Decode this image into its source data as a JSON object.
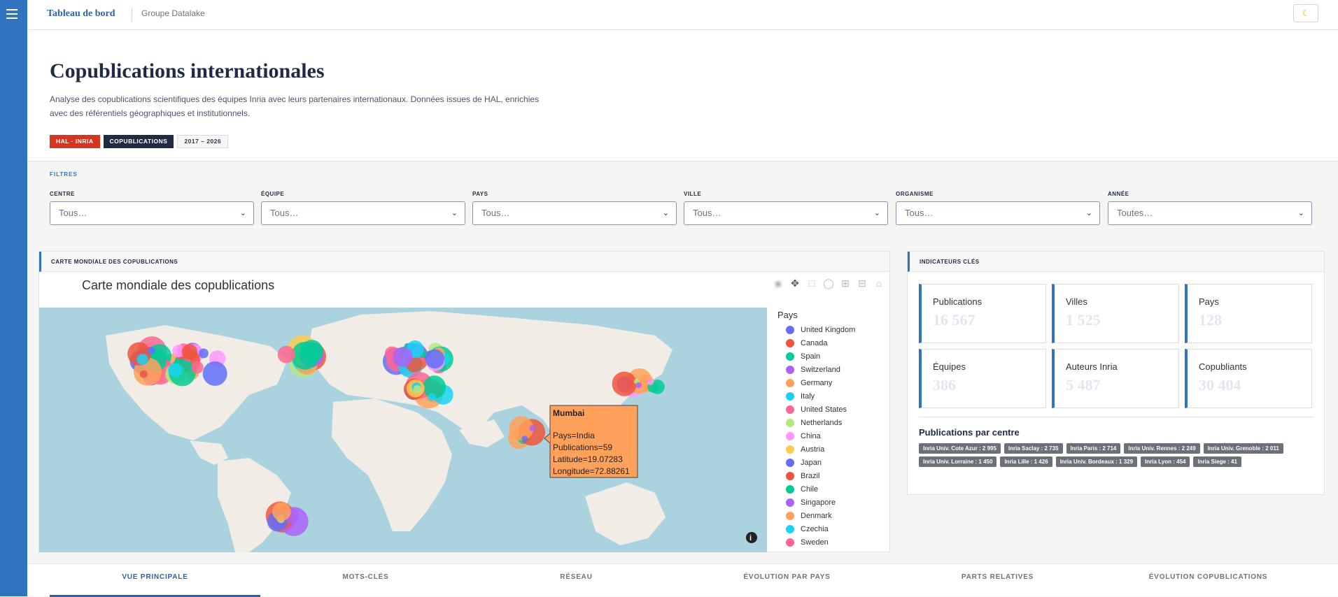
{
  "header": {
    "brand": "Tableau de bord",
    "group": "Groupe Datalake",
    "theme_icon": "moon-icon"
  },
  "hero": {
    "title": "Copublications internationales",
    "description": "Analyse des copublications scientifiques des équipes Inria avec leurs partenaires internationaux. Données issues de HAL, enrichies avec des référentiels géographiques et institutionnels.",
    "badges": [
      "HAL · INRIA",
      "COPUBLICATIONS",
      "2017 – 2026"
    ]
  },
  "filters": {
    "title": "FILTRES",
    "items": [
      {
        "label": "CENTRE",
        "value": "Tous…"
      },
      {
        "label": "ÉQUIPE",
        "value": "Tous…"
      },
      {
        "label": "PAYS",
        "value": "Tous…"
      },
      {
        "label": "VILLE",
        "value": "Tous…"
      },
      {
        "label": "ORGANISME",
        "value": "Tous…"
      },
      {
        "label": "ANNÉE",
        "value": "Toutes…"
      }
    ]
  },
  "map": {
    "card_title": "CARTE MONDIALE DES COPUBLICATIONS",
    "plot_title": "Carte mondiale des copublications",
    "legend_title": "Pays",
    "legend": [
      {
        "name": "United Kingdom",
        "color": "#636efa"
      },
      {
        "name": "Canada",
        "color": "#ef553b"
      },
      {
        "name": "Spain",
        "color": "#00cc96"
      },
      {
        "name": "Switzerland",
        "color": "#ab63fa"
      },
      {
        "name": "Germany",
        "color": "#ffa15a"
      },
      {
        "name": "Italy",
        "color": "#19d3f3"
      },
      {
        "name": "United States",
        "color": "#ff6692"
      },
      {
        "name": "Netherlands",
        "color": "#b6e880"
      },
      {
        "name": "China",
        "color": "#ff97ff"
      },
      {
        "name": "Austria",
        "color": "#fecb52"
      },
      {
        "name": "Japan",
        "color": "#636efa"
      },
      {
        "name": "Brazil",
        "color": "#ef553b"
      },
      {
        "name": "Chile",
        "color": "#00cc96"
      },
      {
        "name": "Singapore",
        "color": "#ab63fa"
      },
      {
        "name": "Denmark",
        "color": "#ffa15a"
      },
      {
        "name": "Czechia",
        "color": "#19d3f3"
      },
      {
        "name": "Sweden",
        "color": "#ff6692"
      }
    ],
    "tooltip": {
      "title": "Mumbai",
      "lines": [
        "Pays=India",
        "Publications=59",
        "Latitude=19.07283",
        "Longitude=72.88261"
      ]
    }
  },
  "kpis": {
    "card_title": "INDICATEURS CLÉS",
    "items": [
      {
        "label": "Publications",
        "value": "16 567"
      },
      {
        "label": "Villes",
        "value": "1 525"
      },
      {
        "label": "Pays",
        "value": "128"
      },
      {
        "label": "Équipes",
        "value": "386"
      },
      {
        "label": "Auteurs Inria",
        "value": "5 487"
      },
      {
        "label": "Copubliants",
        "value": "30 404"
      }
    ],
    "centres_title": "Publications par centre",
    "centres": [
      "Inria Univ. Cote Azur : 2 995",
      "Inria Saclay : 2 735",
      "Inria Paris : 2 714",
      "Inria Univ. Rennes : 2 249",
      "Inria Univ. Grenoble : 2 011",
      "Inria Univ. Lorraine : 1 450",
      "Inria Lille : 1 426",
      "Inria Univ. Bordeaux : 1 329",
      "Inria Lyon : 454",
      "Inria Siege : 41"
    ]
  },
  "tabs": [
    "VUE PRINCIPALE",
    "MOTS-CLÉS",
    "RÉSEAU",
    "ÉVOLUTION PAR PAYS",
    "PARTS RELATIVES",
    "ÉVOLUTION COPUBLICATIONS"
  ]
}
